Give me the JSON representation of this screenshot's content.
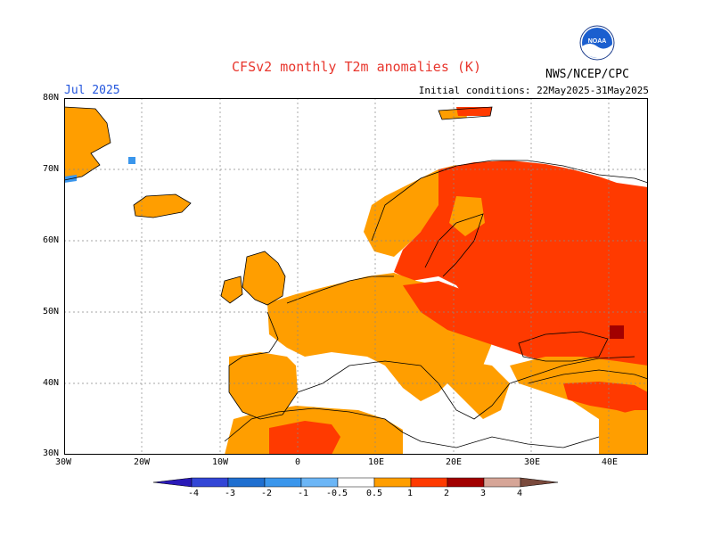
{
  "header": {
    "title": "CFSv2 monthly T2m anomalies (K)",
    "month": "Jul 2025",
    "initial_conditions": "Initial conditions: 22May2025-31May2025",
    "organization": "NWS/NCEP/CPC",
    "logo_text": "NOAA"
  },
  "map": {
    "lat_labels": [
      "80N",
      "70N",
      "60N",
      "50N",
      "40N",
      "30N"
    ],
    "lon_labels": [
      "30W",
      "20W",
      "10W",
      "0",
      "10E",
      "20E",
      "30E",
      "40E"
    ],
    "lon_range": [
      -30,
      45
    ],
    "lat_range": [
      30,
      80
    ],
    "grid": true
  },
  "colorbar": {
    "labels": [
      "-4",
      "-3",
      "-2",
      "-1",
      "-0.5",
      "0.5",
      "1",
      "2",
      "3",
      "4"
    ],
    "colors": [
      "#2a1ab8",
      "#3346d6",
      "#1f6fd0",
      "#3a96ec",
      "#6cb6f6",
      "#ffffff",
      "#ff9e00",
      "#ff3a00",
      "#a20000",
      "#d6a597",
      "#7a4a3c"
    ]
  },
  "colors": {
    "orange": "#ff9e00",
    "red": "#ff3a00",
    "darkred": "#a20000",
    "blue": "#3a96ec",
    "title": "#e8362d",
    "month": "#2255dd"
  }
}
